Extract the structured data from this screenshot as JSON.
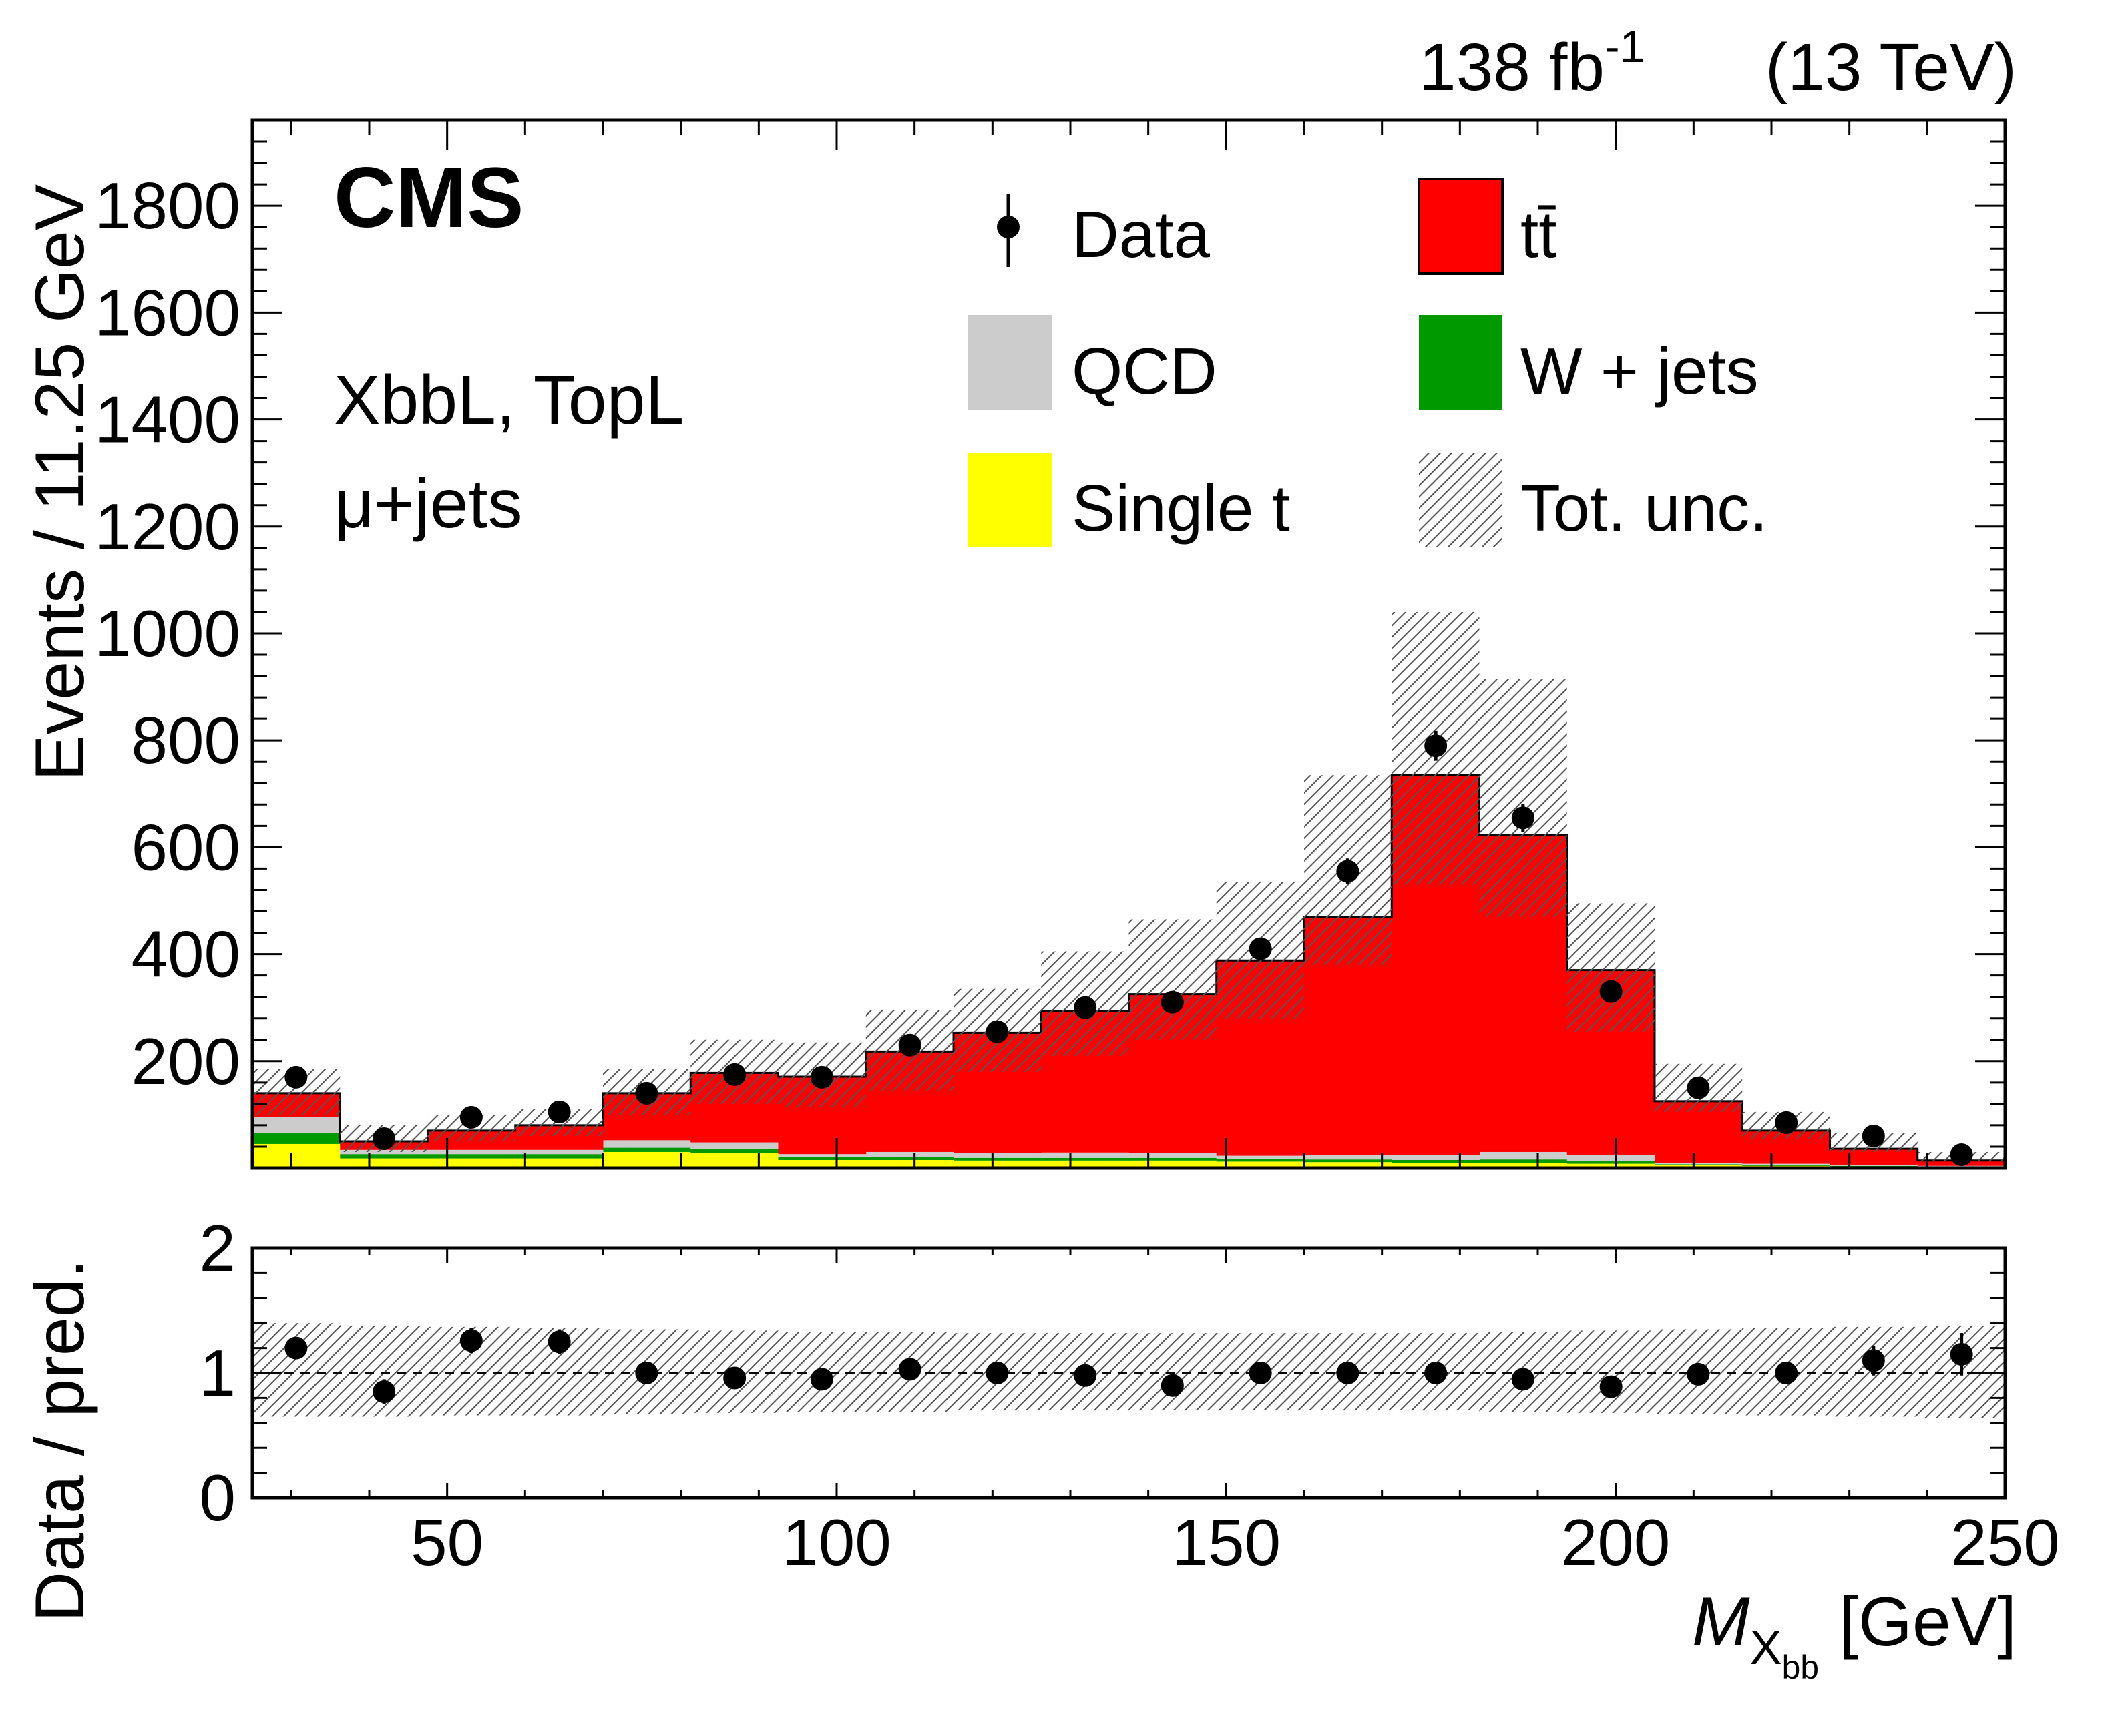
{
  "header": {
    "lumi_main": "138 fb",
    "lumi_sup": "-1",
    "energy": "(13 TeV)",
    "experiment": "CMS",
    "selection": "XbbL, TopL",
    "channel": "μ+jets"
  },
  "legend": {
    "data": "Data",
    "ttbar": "tt̄",
    "qcd": "QCD",
    "wjets": "W + jets",
    "single_t": "Single t",
    "tot_unc": "Tot. unc."
  },
  "axes": {
    "upper_ylabel": "Events / 11.25 GeV",
    "lower_ylabel": "Data / pred.",
    "xlabel_main": "M",
    "xlabel_sub": "X",
    "xlabel_subsub": "bb",
    "xlabel_unit": "[GeV]",
    "upper_yticks": [
      "200",
      "400",
      "600",
      "800",
      "1000",
      "1200",
      "1400",
      "1600",
      "1800"
    ],
    "lower_yticks": [
      "0",
      "1",
      "2"
    ],
    "xticks": [
      "50",
      "100",
      "150",
      "200",
      "250"
    ]
  },
  "colors": {
    "ttbar": "#ff0000",
    "qcd": "#cccccc",
    "wjets": "#009900",
    "single_t": "#ffff00",
    "data": "#000000",
    "unc_hatch": "#555555"
  },
  "chart_data": [
    {
      "type": "bar",
      "subtype": "stacked histogram with data points",
      "title": "",
      "xlabel": "M_Xbb [GeV]",
      "ylabel": "Events / 11.25 GeV",
      "xlim": [
        25,
        250
      ],
      "ylim": [
        0,
        1960
      ],
      "bin_edges": [
        25,
        36.25,
        47.5,
        58.75,
        70,
        81.25,
        92.5,
        103.75,
        115,
        126.25,
        137.5,
        148.75,
        160,
        171.25,
        182.5,
        193.75,
        205,
        216.25,
        227.5,
        238.75,
        250
      ],
      "bin_centers": [
        30.6,
        41.9,
        53.1,
        64.4,
        75.6,
        86.9,
        98.1,
        109.4,
        120.6,
        131.9,
        143.1,
        154.4,
        165.6,
        176.9,
        188.1,
        199.4,
        210.6,
        221.9,
        233.1,
        244.4
      ],
      "series": [
        {
          "name": "Single t",
          "values": [
            45,
            18,
            18,
            18,
            30,
            28,
            15,
            15,
            14,
            14,
            14,
            12,
            11,
            10,
            10,
            8,
            5,
            4,
            3,
            2
          ]
        },
        {
          "name": "W + jets",
          "values": [
            20,
            8,
            8,
            8,
            8,
            8,
            5,
            5,
            5,
            5,
            5,
            5,
            5,
            5,
            6,
            5,
            2,
            2,
            1,
            1
          ]
        },
        {
          "name": "QCD",
          "values": [
            30,
            8,
            8,
            8,
            14,
            12,
            6,
            10,
            9,
            10,
            9,
            6,
            8,
            10,
            14,
            12,
            3,
            2,
            2,
            1
          ]
        },
        {
          "name": "tt̄",
          "values": [
            45,
            16,
            36,
            46,
            88,
            130,
            145,
            188,
            225,
            265,
            297,
            365,
            445,
            710,
            593,
            345,
            115,
            62,
            30,
            10
          ]
        },
        {
          "name": "Data",
          "values": [
            170,
            55,
            95,
            105,
            140,
            175,
            170,
            230,
            255,
            300,
            310,
            410,
            555,
            790,
            655,
            330,
            150,
            85,
            60,
            25
          ],
          "errors": [
            13,
            7,
            10,
            10,
            12,
            13,
            13,
            15,
            16,
            17,
            18,
            20,
            24,
            28,
            26,
            18,
            12,
            9,
            8,
            5
          ]
        }
      ],
      "uncertainty": {
        "name": "Tot. unc.",
        "low": [
          100,
          30,
          50,
          60,
          100,
          120,
          115,
          145,
          180,
          210,
          240,
          280,
          380,
          530,
          470,
          255,
          105,
          55,
          30,
          12
        ],
        "high": [
          185,
          80,
          100,
          110,
          185,
          240,
          235,
          295,
          335,
          405,
          465,
          535,
          735,
          1040,
          915,
          495,
          195,
          105,
          65,
          30
        ]
      }
    },
    {
      "type": "scatter",
      "subtype": "ratio panel",
      "xlabel": "M_Xbb [GeV]",
      "ylabel": "Data / pred.",
      "xlim": [
        25,
        250
      ],
      "ylim": [
        0,
        2
      ],
      "x": [
        30.6,
        41.9,
        53.1,
        64.4,
        75.6,
        86.9,
        98.1,
        109.4,
        120.6,
        131.9,
        143.1,
        154.4,
        165.6,
        176.9,
        188.1,
        199.4,
        210.6,
        221.9,
        233.1,
        244.4
      ],
      "y": [
        1.2,
        0.85,
        1.26,
        1.25,
        1.0,
        0.96,
        0.95,
        1.03,
        1.0,
        0.98,
        0.9,
        1.0,
        1.0,
        1.0,
        0.95,
        0.89,
        0.99,
        1.0,
        1.1,
        1.15
      ],
      "y_errors": [
        0.08,
        0.1,
        0.1,
        0.1,
        0.06,
        0.05,
        0.05,
        0.05,
        0.05,
        0.05,
        0.05,
        0.04,
        0.04,
        0.04,
        0.04,
        0.05,
        0.06,
        0.09,
        0.12,
        0.17
      ],
      "band_low": [
        0.65,
        0.65,
        0.66,
        0.66,
        0.67,
        0.68,
        0.69,
        0.69,
        0.7,
        0.7,
        0.7,
        0.7,
        0.7,
        0.7,
        0.69,
        0.68,
        0.67,
        0.66,
        0.65,
        0.64
      ],
      "band_high": [
        1.4,
        1.38,
        1.37,
        1.36,
        1.35,
        1.34,
        1.33,
        1.33,
        1.32,
        1.32,
        1.32,
        1.32,
        1.32,
        1.32,
        1.33,
        1.34,
        1.35,
        1.36,
        1.37,
        1.38
      ],
      "reference_line": 1
    }
  ]
}
